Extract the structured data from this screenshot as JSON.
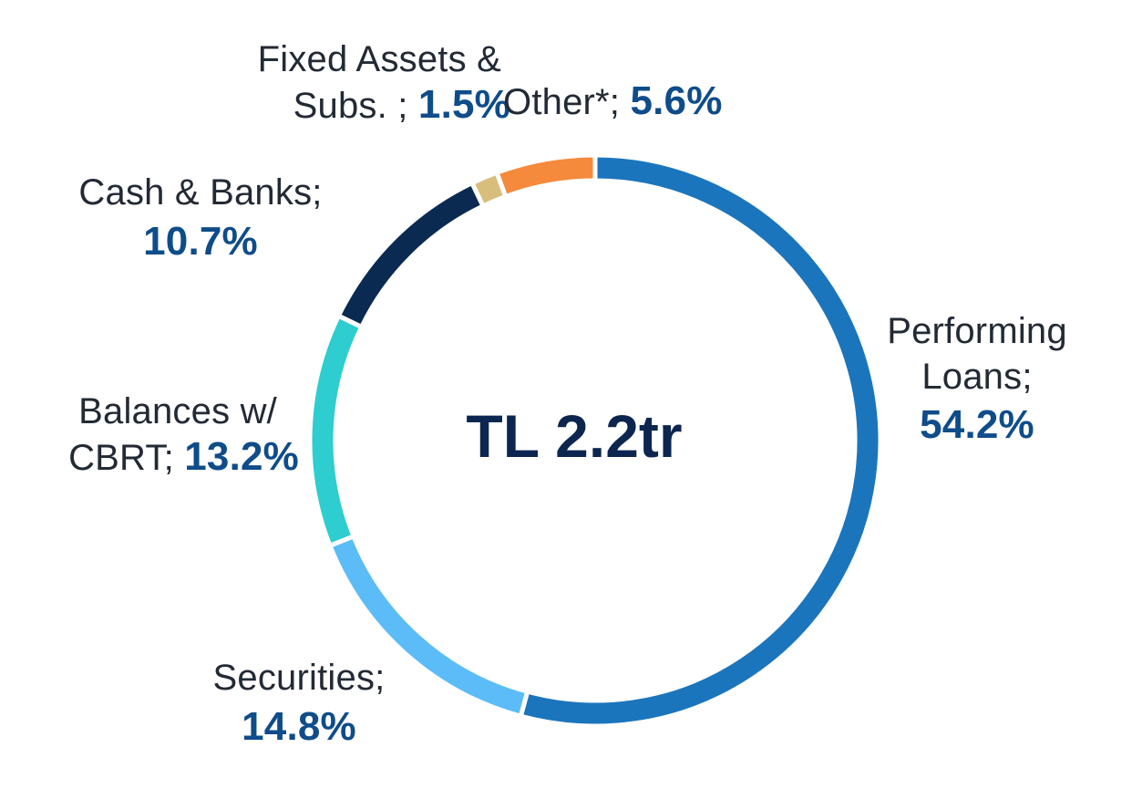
{
  "chart_data": {
    "type": "pie",
    "center_label": "TL 2.2tr",
    "slices": [
      {
        "name": "Performing Loans",
        "label_line1": "Performing",
        "label_line2": "Loans;",
        "value_text": "54.2%",
        "value": 54.2,
        "color": "#1b75bc"
      },
      {
        "name": "Securities",
        "label_line1": "Securities;",
        "value_text": "14.8%",
        "value": 14.8,
        "color": "#5bbcf8"
      },
      {
        "name": "Balances w/ CBRT",
        "label_line1": "Balances w/",
        "label_line2": "CBRT;",
        "value_text": "13.2%",
        "value": 13.2,
        "color": "#2ecdcf"
      },
      {
        "name": "Cash & Banks",
        "label_line1": "Cash & Banks;",
        "value_text": "10.7%",
        "value": 10.7,
        "color": "#0b2a52"
      },
      {
        "name": "Fixed Assets & Subs.",
        "label_line1": "Fixed Assets &",
        "label_line2": "Subs. ;",
        "value_text": "1.5%",
        "value": 1.5,
        "color": "#d7be7d"
      },
      {
        "name": "Other*",
        "label_line1": "Other*;",
        "value_text": "5.6%",
        "value": 5.6,
        "color": "#f58a3c"
      }
    ]
  }
}
